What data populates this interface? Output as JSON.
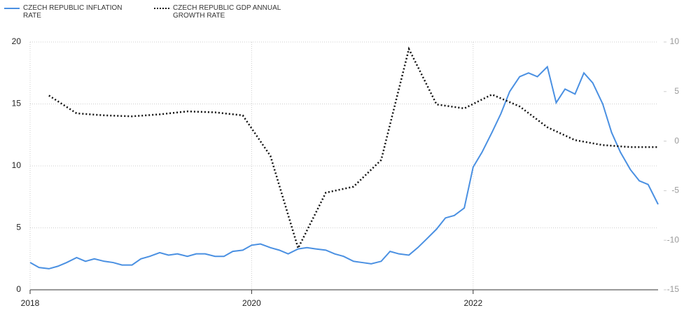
{
  "chart_data": {
    "type": "line",
    "series": [
      {
        "name": "CZECH REPUBLIC INFLATION RATE",
        "color": "#4a90e2",
        "style": "solid",
        "axis": "y",
        "x": [
          2018,
          2018.08,
          2018.17,
          2018.25,
          2018.33,
          2018.42,
          2018.5,
          2018.58,
          2018.67,
          2018.75,
          2018.83,
          2018.92,
          2019,
          2019.08,
          2019.17,
          2019.25,
          2019.33,
          2019.42,
          2019.5,
          2019.58,
          2019.67,
          2019.75,
          2019.83,
          2019.92,
          2020,
          2020.08,
          2020.17,
          2020.25,
          2020.33,
          2020.42,
          2020.5,
          2020.58,
          2020.67,
          2020.75,
          2020.83,
          2020.92,
          2021,
          2021.08,
          2021.17,
          2021.25,
          2021.33,
          2021.42,
          2021.5,
          2021.58,
          2021.67,
          2021.75,
          2021.83,
          2021.92,
          2022,
          2022.08,
          2022.17,
          2022.25,
          2022.33,
          2022.42,
          2022.5,
          2022.58,
          2022.67,
          2022.75,
          2022.83,
          2022.92,
          2023,
          2023.08,
          2023.17,
          2023.25,
          2023.33,
          2023.42,
          2023.5,
          2023.58,
          2023.67
        ],
        "values": [
          2.2,
          1.8,
          1.7,
          1.9,
          2.2,
          2.6,
          2.3,
          2.5,
          2.3,
          2.2,
          2.0,
          2.0,
          2.5,
          2.7,
          3.0,
          2.8,
          2.9,
          2.7,
          2.9,
          2.9,
          2.7,
          2.7,
          3.1,
          3.2,
          3.6,
          3.7,
          3.4,
          3.2,
          2.9,
          3.3,
          3.4,
          3.3,
          3.2,
          2.9,
          2.7,
          2.3,
          2.2,
          2.1,
          2.3,
          3.1,
          2.9,
          2.8,
          3.4,
          4.1,
          4.9,
          5.8,
          6.0,
          6.6,
          9.9,
          11.1,
          12.7,
          14.2,
          16.0,
          17.2,
          17.5,
          17.2,
          18.0,
          15.1,
          16.2,
          15.8,
          17.5,
          16.7,
          15.0,
          12.7,
          11.1,
          9.7,
          8.8,
          8.5,
          6.9
        ]
      },
      {
        "name": "CZECH REPUBLIC GDP ANNUAL GROWTH RATE",
        "color": "#111111",
        "style": "dotted",
        "axis": "y2",
        "x": [
          2018.17,
          2018.42,
          2018.67,
          2018.92,
          2019.17,
          2019.42,
          2019.67,
          2019.92,
          2020.17,
          2020.42,
          2020.67,
          2020.92,
          2021.17,
          2021.42,
          2021.67,
          2021.92,
          2022.17,
          2022.42,
          2022.67,
          2022.92,
          2023.17,
          2023.42,
          2023.67
        ],
        "values": [
          4.6,
          2.8,
          2.6,
          2.5,
          2.7,
          3.0,
          2.9,
          2.6,
          -1.5,
          -10.8,
          -5.2,
          -4.6,
          -1.9,
          9.3,
          3.7,
          3.3,
          4.7,
          3.5,
          1.4,
          0.1,
          -0.4,
          -0.6,
          -0.6
        ]
      }
    ],
    "xlim": [
      2018,
      2023.67
    ],
    "xticks": [
      2018,
      2020,
      2022
    ],
    "ylim": [
      0,
      20
    ],
    "yticks": [
      0,
      5,
      10,
      15,
      20
    ],
    "y2lim": [
      -15,
      10
    ],
    "y2ticks": [
      -15,
      -10,
      -5,
      0,
      5,
      10
    ],
    "grid": true,
    "legend": "top-left"
  }
}
